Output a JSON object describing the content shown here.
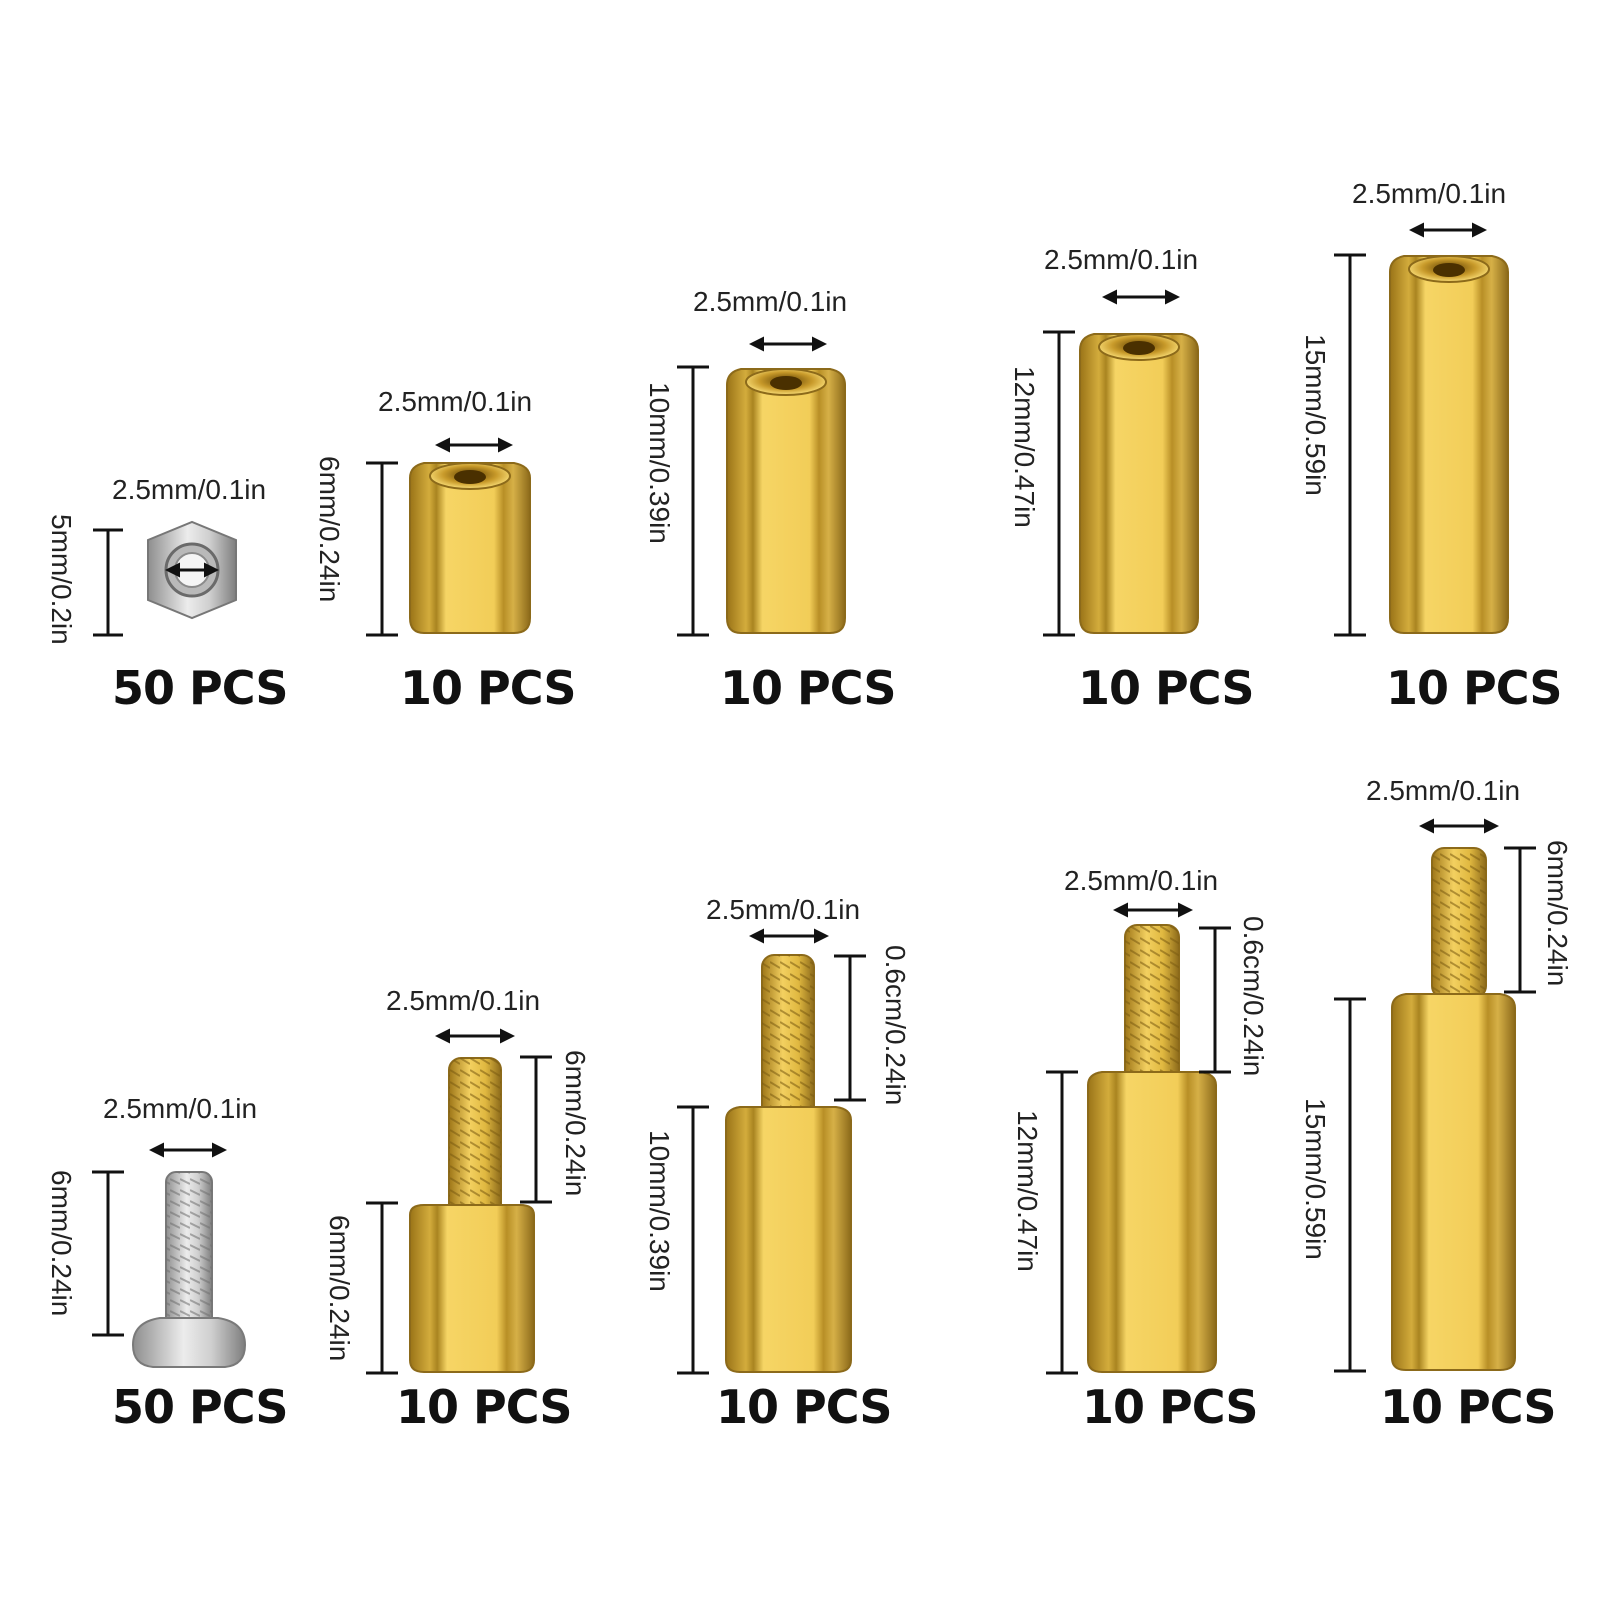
{
  "palette": {
    "brass_light": "#f6d565",
    "brass_mid": "#c9a53a",
    "brass_dark": "#8c6a1a",
    "steel_light": "#e6e6e6",
    "steel_dark": "#8a8a8a",
    "ink": "#111111"
  },
  "items": [
    {
      "kind": "hex-nut",
      "diameter": "2.5mm/0.1in",
      "height": "5mm/0.2in",
      "quantity": "50 PCS"
    },
    {
      "kind": "female-standoff",
      "diameter": "2.5mm/0.1in",
      "height": "6mm/0.24in",
      "quantity": "10 PCS"
    },
    {
      "kind": "female-standoff",
      "diameter": "2.5mm/0.1in",
      "height": "10mm/0.39in",
      "quantity": "10 PCS"
    },
    {
      "kind": "female-standoff",
      "diameter": "2.5mm/0.1in",
      "height": "12mm/0.47in",
      "quantity": "10 PCS"
    },
    {
      "kind": "female-standoff",
      "diameter": "2.5mm/0.1in",
      "height": "15mm/0.59in",
      "quantity": "10 PCS"
    },
    {
      "kind": "screw",
      "diameter": "2.5mm/0.1in",
      "height": "6mm/0.24in",
      "quantity": "50 PCS"
    },
    {
      "kind": "male-female-standoff",
      "diameter": "2.5mm/0.1in",
      "height": "6mm/0.24in",
      "thread": "6mm/0.24in",
      "quantity": "10 PCS"
    },
    {
      "kind": "male-female-standoff",
      "diameter": "2.5mm/0.1in",
      "height": "10mm/0.39in",
      "thread": "0.6cm/0.24in",
      "quantity": "10 PCS"
    },
    {
      "kind": "male-female-standoff",
      "diameter": "2.5mm/0.1in",
      "height": "12mm/0.47in",
      "thread": "0.6cm/0.24in",
      "quantity": "10 PCS"
    },
    {
      "kind": "male-female-standoff",
      "diameter": "2.5mm/0.1in",
      "height": "15mm/0.59in",
      "thread": "6mm/0.24in",
      "quantity": "10 PCS"
    }
  ]
}
